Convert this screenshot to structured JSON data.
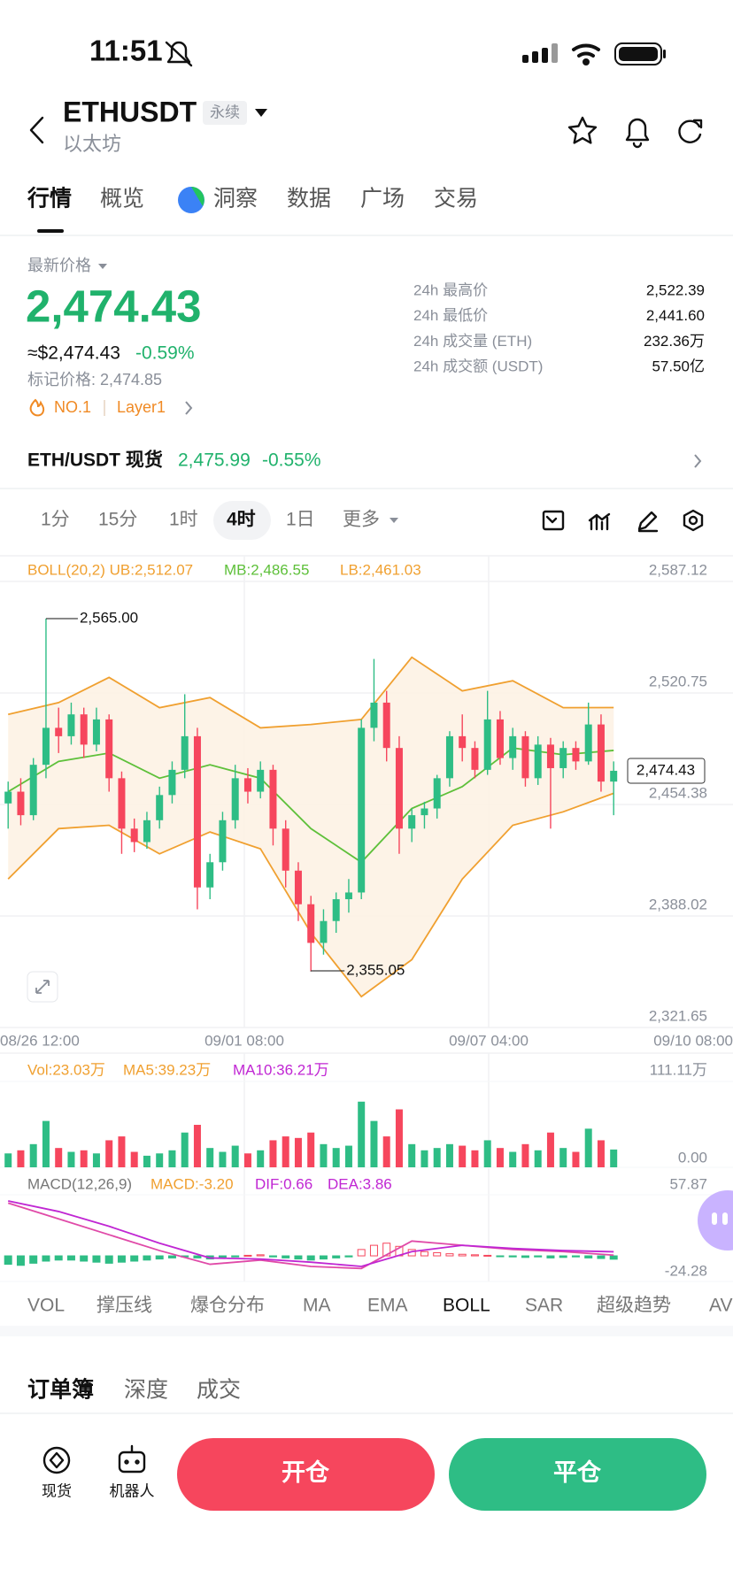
{
  "status_bar": {
    "time": "11:51"
  },
  "header": {
    "symbol": "ETHUSDT",
    "badge": "永续",
    "name": "以太坊"
  },
  "tabs": [
    "行情",
    "概览",
    "洞察",
    "数据",
    "广场",
    "交易"
  ],
  "ticker": {
    "price_label": "最新价格",
    "price": "2,474.43",
    "usd": "≈$2,474.43",
    "change": "-0.59%",
    "mark_price": "标记价格: 2,474.85",
    "rank": "NO.1",
    "tag": "Layer1"
  },
  "stats": [
    {
      "label": "24h 最高价",
      "value": "2,522.39"
    },
    {
      "label": "24h 最低价",
      "value": "2,441.60"
    },
    {
      "label": "24h 成交量 (ETH)",
      "value": "232.36万"
    },
    {
      "label": "24h 成交额 (USDT)",
      "value": "57.50亿"
    }
  ],
  "spot": {
    "pair": "ETH/USDT 现货",
    "price": "2,475.99",
    "change": "-0.55%"
  },
  "intervals": [
    "1分",
    "15分",
    "1时",
    "4时",
    "1日",
    "更多"
  ],
  "chart_data": {
    "type": "candlestick",
    "boll_legend": "BOLL(20,2) UB:2,512.07",
    "mb_legend": "MB:2,486.55",
    "lb_legend": "LB:2,461.03",
    "ylim": [
      2321.65,
      2587.12
    ],
    "yticks": [
      {
        "value": 2587.12,
        "label": "2,587.12"
      },
      {
        "value": 2520.75,
        "label": "2,520.75"
      },
      {
        "value": 2454.38,
        "label": "2,454.38"
      },
      {
        "value": 2388.02,
        "label": "2,388.02"
      },
      {
        "value": 2321.65,
        "label": "2,321.65"
      }
    ],
    "x_labels": [
      "08/26 12:00",
      "09/01 08:00",
      "09/07 04:00",
      "09/10 08:00"
    ],
    "candles": [
      [
        2455,
        2468,
        2440,
        2462
      ],
      [
        2462,
        2470,
        2442,
        2448
      ],
      [
        2448,
        2482,
        2445,
        2478
      ],
      [
        2478,
        2565,
        2470,
        2500
      ],
      [
        2500,
        2512,
        2485,
        2495
      ],
      [
        2495,
        2515,
        2490,
        2508
      ],
      [
        2508,
        2512,
        2482,
        2490
      ],
      [
        2490,
        2512,
        2486,
        2505
      ],
      [
        2505,
        2508,
        2462,
        2470
      ],
      [
        2470,
        2474,
        2425,
        2440
      ],
      [
        2440,
        2446,
        2426,
        2432
      ],
      [
        2432,
        2450,
        2428,
        2445
      ],
      [
        2445,
        2465,
        2440,
        2460
      ],
      [
        2460,
        2480,
        2455,
        2475
      ],
      [
        2475,
        2520,
        2470,
        2495
      ],
      [
        2495,
        2500,
        2392,
        2405
      ],
      [
        2405,
        2425,
        2398,
        2420
      ],
      [
        2420,
        2450,
        2415,
        2445
      ],
      [
        2445,
        2478,
        2440,
        2470
      ],
      [
        2470,
        2476,
        2455,
        2462
      ],
      [
        2462,
        2480,
        2458,
        2475
      ],
      [
        2475,
        2478,
        2430,
        2440
      ],
      [
        2440,
        2445,
        2405,
        2415
      ],
      [
        2415,
        2420,
        2385,
        2395
      ],
      [
        2395,
        2400,
        2355.05,
        2372
      ],
      [
        2372,
        2392,
        2365,
        2385
      ],
      [
        2385,
        2402,
        2378,
        2398
      ],
      [
        2398,
        2410,
        2390,
        2402
      ],
      [
        2402,
        2505,
        2398,
        2500
      ],
      [
        2500,
        2541,
        2492,
        2515
      ],
      [
        2515,
        2522,
        2480,
        2488
      ],
      [
        2488,
        2495,
        2425,
        2440
      ],
      [
        2440,
        2452,
        2432,
        2448
      ],
      [
        2448,
        2456,
        2440,
        2452
      ],
      [
        2452,
        2472,
        2446,
        2470
      ],
      [
        2470,
        2498,
        2465,
        2495
      ],
      [
        2495,
        2508,
        2480,
        2488
      ],
      [
        2488,
        2492,
        2470,
        2475
      ],
      [
        2475,
        2522,
        2472,
        2505
      ],
      [
        2505,
        2510,
        2478,
        2482
      ],
      [
        2482,
        2500,
        2475,
        2495
      ],
      [
        2495,
        2498,
        2465,
        2470
      ],
      [
        2470,
        2495,
        2466,
        2490
      ],
      [
        2490,
        2494,
        2440,
        2476
      ],
      [
        2476,
        2492,
        2470,
        2488
      ],
      [
        2488,
        2492,
        2475,
        2480
      ],
      [
        2480,
        2515,
        2478,
        2502
      ],
      [
        2502,
        2508,
        2462,
        2468
      ],
      [
        2468,
        2480,
        2448,
        2474.43
      ]
    ],
    "high_label": "2,565.00",
    "low_label": "2,355.05",
    "last_label": "2,474.43",
    "boll": {
      "x": [
        0,
        4,
        8,
        12,
        16,
        20,
        24,
        28,
        32,
        36,
        40,
        44,
        48
      ],
      "ub": [
        2508,
        2515,
        2530,
        2512,
        2518,
        2500,
        2502,
        2505,
        2542,
        2522,
        2528,
        2512,
        2512.07
      ],
      "mb": [
        2462,
        2480,
        2485,
        2470,
        2478,
        2470,
        2440,
        2420,
        2452,
        2465,
        2488,
        2484,
        2486.55
      ],
      "lb": [
        2410,
        2440,
        2442,
        2425,
        2438,
        2428,
        2378,
        2340,
        2362,
        2410,
        2442,
        2450,
        2461.03
      ]
    },
    "volume": {
      "legend": [
        "Vol:23.03万",
        "MA5:39.23万",
        "MA10:36.21万"
      ],
      "ylim": [
        0,
        111.11
      ],
      "yticks": [
        {
          "value": 111.11,
          "label": "111.11万"
        },
        {
          "value": 0,
          "label": "0.00"
        }
      ],
      "values": [
        18,
        22,
        30,
        60,
        25,
        20,
        22,
        18,
        35,
        40,
        20,
        15,
        18,
        22,
        45,
        55,
        25,
        20,
        28,
        18,
        22,
        35,
        40,
        38,
        45,
        30,
        25,
        28,
        85,
        60,
        40,
        75,
        30,
        22,
        25,
        30,
        28,
        22,
        35,
        25,
        20,
        30,
        22,
        45,
        25,
        20,
        50,
        35,
        23.03
      ]
    },
    "macd": {
      "legend": [
        "MACD(12,26,9)",
        "MACD:-3.20",
        "DIF:0.66",
        "DEA:3.86"
      ],
      "ylim": [
        -24.28,
        57.87
      ],
      "yticks": [
        {
          "value": 57.87,
          "label": "57.87"
        },
        {
          "value": -24.28,
          "label": "-24.28"
        }
      ],
      "hist": [
        -8,
        -9,
        -7,
        -5,
        -4,
        -4,
        -5,
        -6,
        -7,
        -6,
        -5,
        -4,
        -3,
        -2,
        -1,
        -2,
        -3,
        -2,
        -1,
        0.5,
        1,
        -1,
        -2,
        -3,
        -4,
        -3,
        -2,
        -1,
        6,
        10,
        12,
        9,
        6,
        4,
        3,
        2,
        1.5,
        1,
        0.5,
        -0.5,
        -1,
        -1.5,
        -1,
        -2,
        -1.5,
        -1,
        -2,
        -2.5,
        -3.2
      ],
      "x": [
        0,
        4,
        8,
        12,
        16,
        20,
        24,
        28,
        32,
        36,
        40,
        44,
        48
      ],
      "dif": [
        50,
        35,
        20,
        5,
        -8,
        -4,
        -10,
        -12,
        14,
        10,
        6,
        4,
        0.66
      ],
      "dea": [
        52,
        42,
        28,
        12,
        -2,
        -3,
        -6,
        -10,
        4,
        10,
        7,
        5,
        3.86
      ]
    }
  },
  "indicators": [
    "VOL",
    "撑压线",
    "爆仓分布",
    "MA",
    "EMA",
    "BOLL",
    "SAR",
    "超级趋势",
    "AV"
  ],
  "orderbook_tabs": [
    "订单簿",
    "深度",
    "成交"
  ],
  "bottom_bar": {
    "spot": "现货",
    "robot": "机器人",
    "open": "开仓",
    "close": "平仓"
  }
}
